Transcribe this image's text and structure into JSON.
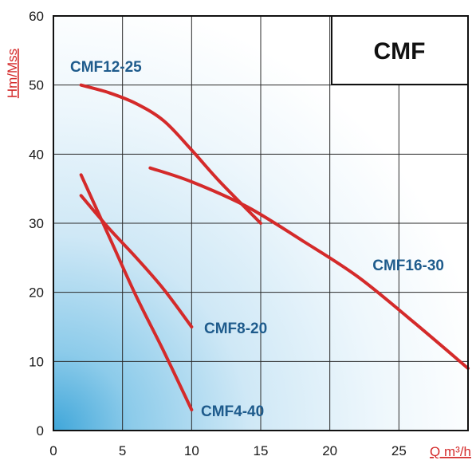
{
  "chart_data": {
    "type": "line",
    "title": "CMF",
    "xlabel": "Q m³/h",
    "ylabel": "Hm/Mss",
    "xlim": [
      0,
      30
    ],
    "ylim": [
      0,
      60
    ],
    "x_ticks": [
      0,
      5,
      10,
      15,
      20,
      25
    ],
    "y_ticks": [
      0,
      10,
      20,
      30,
      40,
      50,
      60
    ],
    "grid": true,
    "series": [
      {
        "name": "CMF12-25",
        "x": [
          2,
          4,
          6,
          8,
          10,
          12,
          15
        ],
        "y": [
          50,
          48.9,
          47.3,
          44.8,
          40.6,
          36.1,
          30.0
        ]
      },
      {
        "name": "CMF16-30",
        "x": [
          7,
          10,
          14,
          18,
          22,
          26,
          30
        ],
        "y": [
          38,
          36,
          32.4,
          27.5,
          22.3,
          15.8,
          9.0
        ]
      },
      {
        "name": "CMF8-20",
        "x": [
          2,
          4,
          6,
          8,
          10
        ],
        "y": [
          34,
          29.3,
          25,
          20.4,
          15.0
        ]
      },
      {
        "name": "CMF4-40",
        "x": [
          2,
          4,
          6,
          8,
          10
        ],
        "y": [
          37,
          28.2,
          19.4,
          11.4,
          3.0
        ]
      }
    ],
    "colors": {
      "line": "#d42a2a",
      "label": "#1e5b8c",
      "axis_title": "#d42a2a"
    }
  }
}
